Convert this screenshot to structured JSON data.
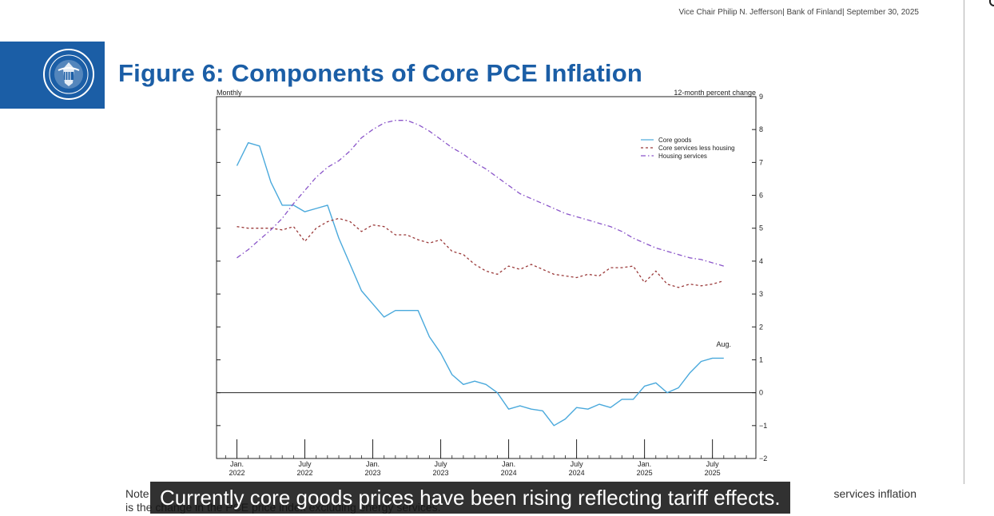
{
  "header": {
    "meta": "Vice Chair Philip N. Jefferson| Bank of Finland| September 30, 2025"
  },
  "logo": {
    "seal_text_top": "BOARD OF GOVERNORS",
    "seal_text_bottom": "FEDERAL RESERVE"
  },
  "figure": {
    "title": "Figure 6: Components of Core PCE Inflation"
  },
  "colors": {
    "brand_blue": "#1b5ea6",
    "core_goods": "#4aa9dc",
    "core_services": "#9b3a3a",
    "housing": "#8a55c9"
  },
  "chart_data": {
    "type": "line",
    "title": "",
    "frequency_label": "Monthly",
    "ylabel": "12-month percent change",
    "ylim": [
      -2,
      9
    ],
    "yticks": [
      -2,
      -1,
      0,
      1,
      2,
      3,
      4,
      5,
      6,
      7,
      8,
      9
    ],
    "ytick_labels": [
      "−2",
      "−1",
      "0",
      "1",
      "2",
      "3",
      "4",
      "5",
      "6",
      "7",
      "8",
      "9"
    ],
    "x_start": "2021-12",
    "x_months": 46,
    "xtick_labels": [
      {
        "month": 1,
        "line1": "Jan.",
        "line2": "2022"
      },
      {
        "month": 7,
        "line1": "July",
        "line2": "2022"
      },
      {
        "month": 13,
        "line1": "Jan.",
        "line2": "2023"
      },
      {
        "month": 19,
        "line1": "July",
        "line2": "2023"
      },
      {
        "month": 25,
        "line1": "Jan.",
        "line2": "2024"
      },
      {
        "month": 31,
        "line1": "July",
        "line2": "2024"
      },
      {
        "month": 37,
        "line1": "Jan.",
        "line2": "2025"
      },
      {
        "month": 43,
        "line1": "July",
        "line2": "2025"
      }
    ],
    "annotation": {
      "label": "Aug.",
      "month": 44
    },
    "series": [
      {
        "name": "Core goods",
        "style": "solid",
        "color": "#4aa9dc",
        "start_month": 1,
        "values": [
          6.9,
          7.6,
          7.5,
          6.4,
          5.7,
          5.7,
          5.5,
          5.6,
          5.7,
          4.7,
          3.9,
          3.1,
          2.7,
          2.3,
          2.5,
          2.5,
          2.5,
          1.7,
          1.2,
          0.55,
          0.25,
          0.35,
          0.25,
          0.0,
          -0.5,
          -0.4,
          -0.5,
          -0.55,
          -1.0,
          -0.8,
          -0.45,
          -0.5,
          -0.35,
          -0.45,
          -0.2,
          -0.2,
          0.2,
          0.3,
          0.0,
          0.15,
          0.6,
          0.95,
          1.05,
          1.05
        ]
      },
      {
        "name": "Core services less housing",
        "style": "dashed",
        "color": "#9b3a3a",
        "start_month": 1,
        "values": [
          5.05,
          5.0,
          5.0,
          5.0,
          4.95,
          5.05,
          4.6,
          5.0,
          5.2,
          5.3,
          5.2,
          4.9,
          5.1,
          5.05,
          4.8,
          4.8,
          4.65,
          4.55,
          4.65,
          4.3,
          4.2,
          3.9,
          3.7,
          3.6,
          3.85,
          3.75,
          3.9,
          3.75,
          3.6,
          3.55,
          3.5,
          3.6,
          3.55,
          3.8,
          3.8,
          3.85,
          3.35,
          3.7,
          3.3,
          3.2,
          3.3,
          3.25,
          3.3,
          3.4
        ]
      },
      {
        "name": "Housing services",
        "style": "dashdot",
        "color": "#8a55c9",
        "start_month": 1,
        "values": [
          4.1,
          4.35,
          4.65,
          4.95,
          5.3,
          5.75,
          6.15,
          6.55,
          6.85,
          7.05,
          7.35,
          7.75,
          8.0,
          8.2,
          8.28,
          8.28,
          8.15,
          7.95,
          7.7,
          7.45,
          7.25,
          7.0,
          6.8,
          6.55,
          6.3,
          6.05,
          5.9,
          5.75,
          5.6,
          5.45,
          5.35,
          5.25,
          5.15,
          5.05,
          4.9,
          4.7,
          4.55,
          4.4,
          4.3,
          4.2,
          4.1,
          4.05,
          3.95,
          3.85
        ]
      }
    ],
    "legend": {
      "placement": "upper-right",
      "entries": [
        "Core goods",
        "Core services less housing",
        "Housing services"
      ]
    }
  },
  "note": {
    "line1_left": "Note",
    "line1_right": "services inflation",
    "line2": "is the change in the PCE price index excluding energy services."
  },
  "caption": {
    "text": "Currently core goods prices have been rising reflecting tariff effects."
  }
}
